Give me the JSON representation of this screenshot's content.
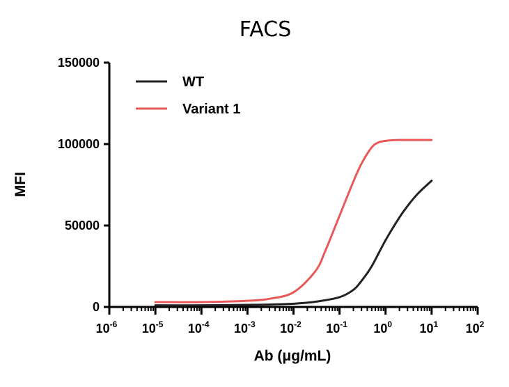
{
  "chart_data": {
    "type": "line",
    "title": "FACS",
    "xlabel": "Ab (μg/mL)",
    "ylabel": "MFI",
    "x_scale": "log",
    "xlim": [
      1e-06,
      100
    ],
    "ylim": [
      0,
      150000
    ],
    "x_ticks": [
      {
        "base": "10",
        "exp": "-6",
        "value": 1e-06
      },
      {
        "base": "10",
        "exp": "-5",
        "value": 1e-05
      },
      {
        "base": "10",
        "exp": "-4",
        "value": 0.0001
      },
      {
        "base": "10",
        "exp": "-3",
        "value": 0.001
      },
      {
        "base": "10",
        "exp": "-2",
        "value": 0.01
      },
      {
        "base": "10",
        "exp": "-1",
        "value": 0.1
      },
      {
        "base": "10",
        "exp": "0",
        "value": 1
      },
      {
        "base": "10",
        "exp": "1",
        "value": 10
      },
      {
        "base": "10",
        "exp": "2",
        "value": 100
      }
    ],
    "y_ticks": [
      {
        "label": "0",
        "value": 0
      },
      {
        "label": "50000",
        "value": 50000
      },
      {
        "label": "100000",
        "value": 100000
      },
      {
        "label": "150000",
        "value": 150000
      }
    ],
    "grid": false,
    "legend": {
      "position": "top-left"
    },
    "series": [
      {
        "name": "WT",
        "color": "#222222",
        "x": [
          1e-05,
          0.0001,
          0.001,
          0.003,
          0.01,
          0.03,
          0.1,
          0.2,
          0.3,
          0.5,
          1,
          2,
          3,
          5,
          10
        ],
        "y": [
          1000,
          1000,
          1300,
          1500,
          2000,
          3200,
          6000,
          10500,
          16000,
          25000,
          41000,
          55000,
          62000,
          69500,
          77500
        ]
      },
      {
        "name": "Variant 1",
        "color": "#e8595a",
        "x": [
          1e-05,
          0.0001,
          0.001,
          0.003,
          0.01,
          0.03,
          0.05,
          0.1,
          0.2,
          0.3,
          0.5,
          0.7,
          1,
          2,
          10
        ],
        "y": [
          3000,
          3000,
          3800,
          5000,
          9000,
          22000,
          35000,
          56000,
          77000,
          88000,
          98000,
          101000,
          102000,
          102500,
          102500
        ]
      }
    ]
  }
}
